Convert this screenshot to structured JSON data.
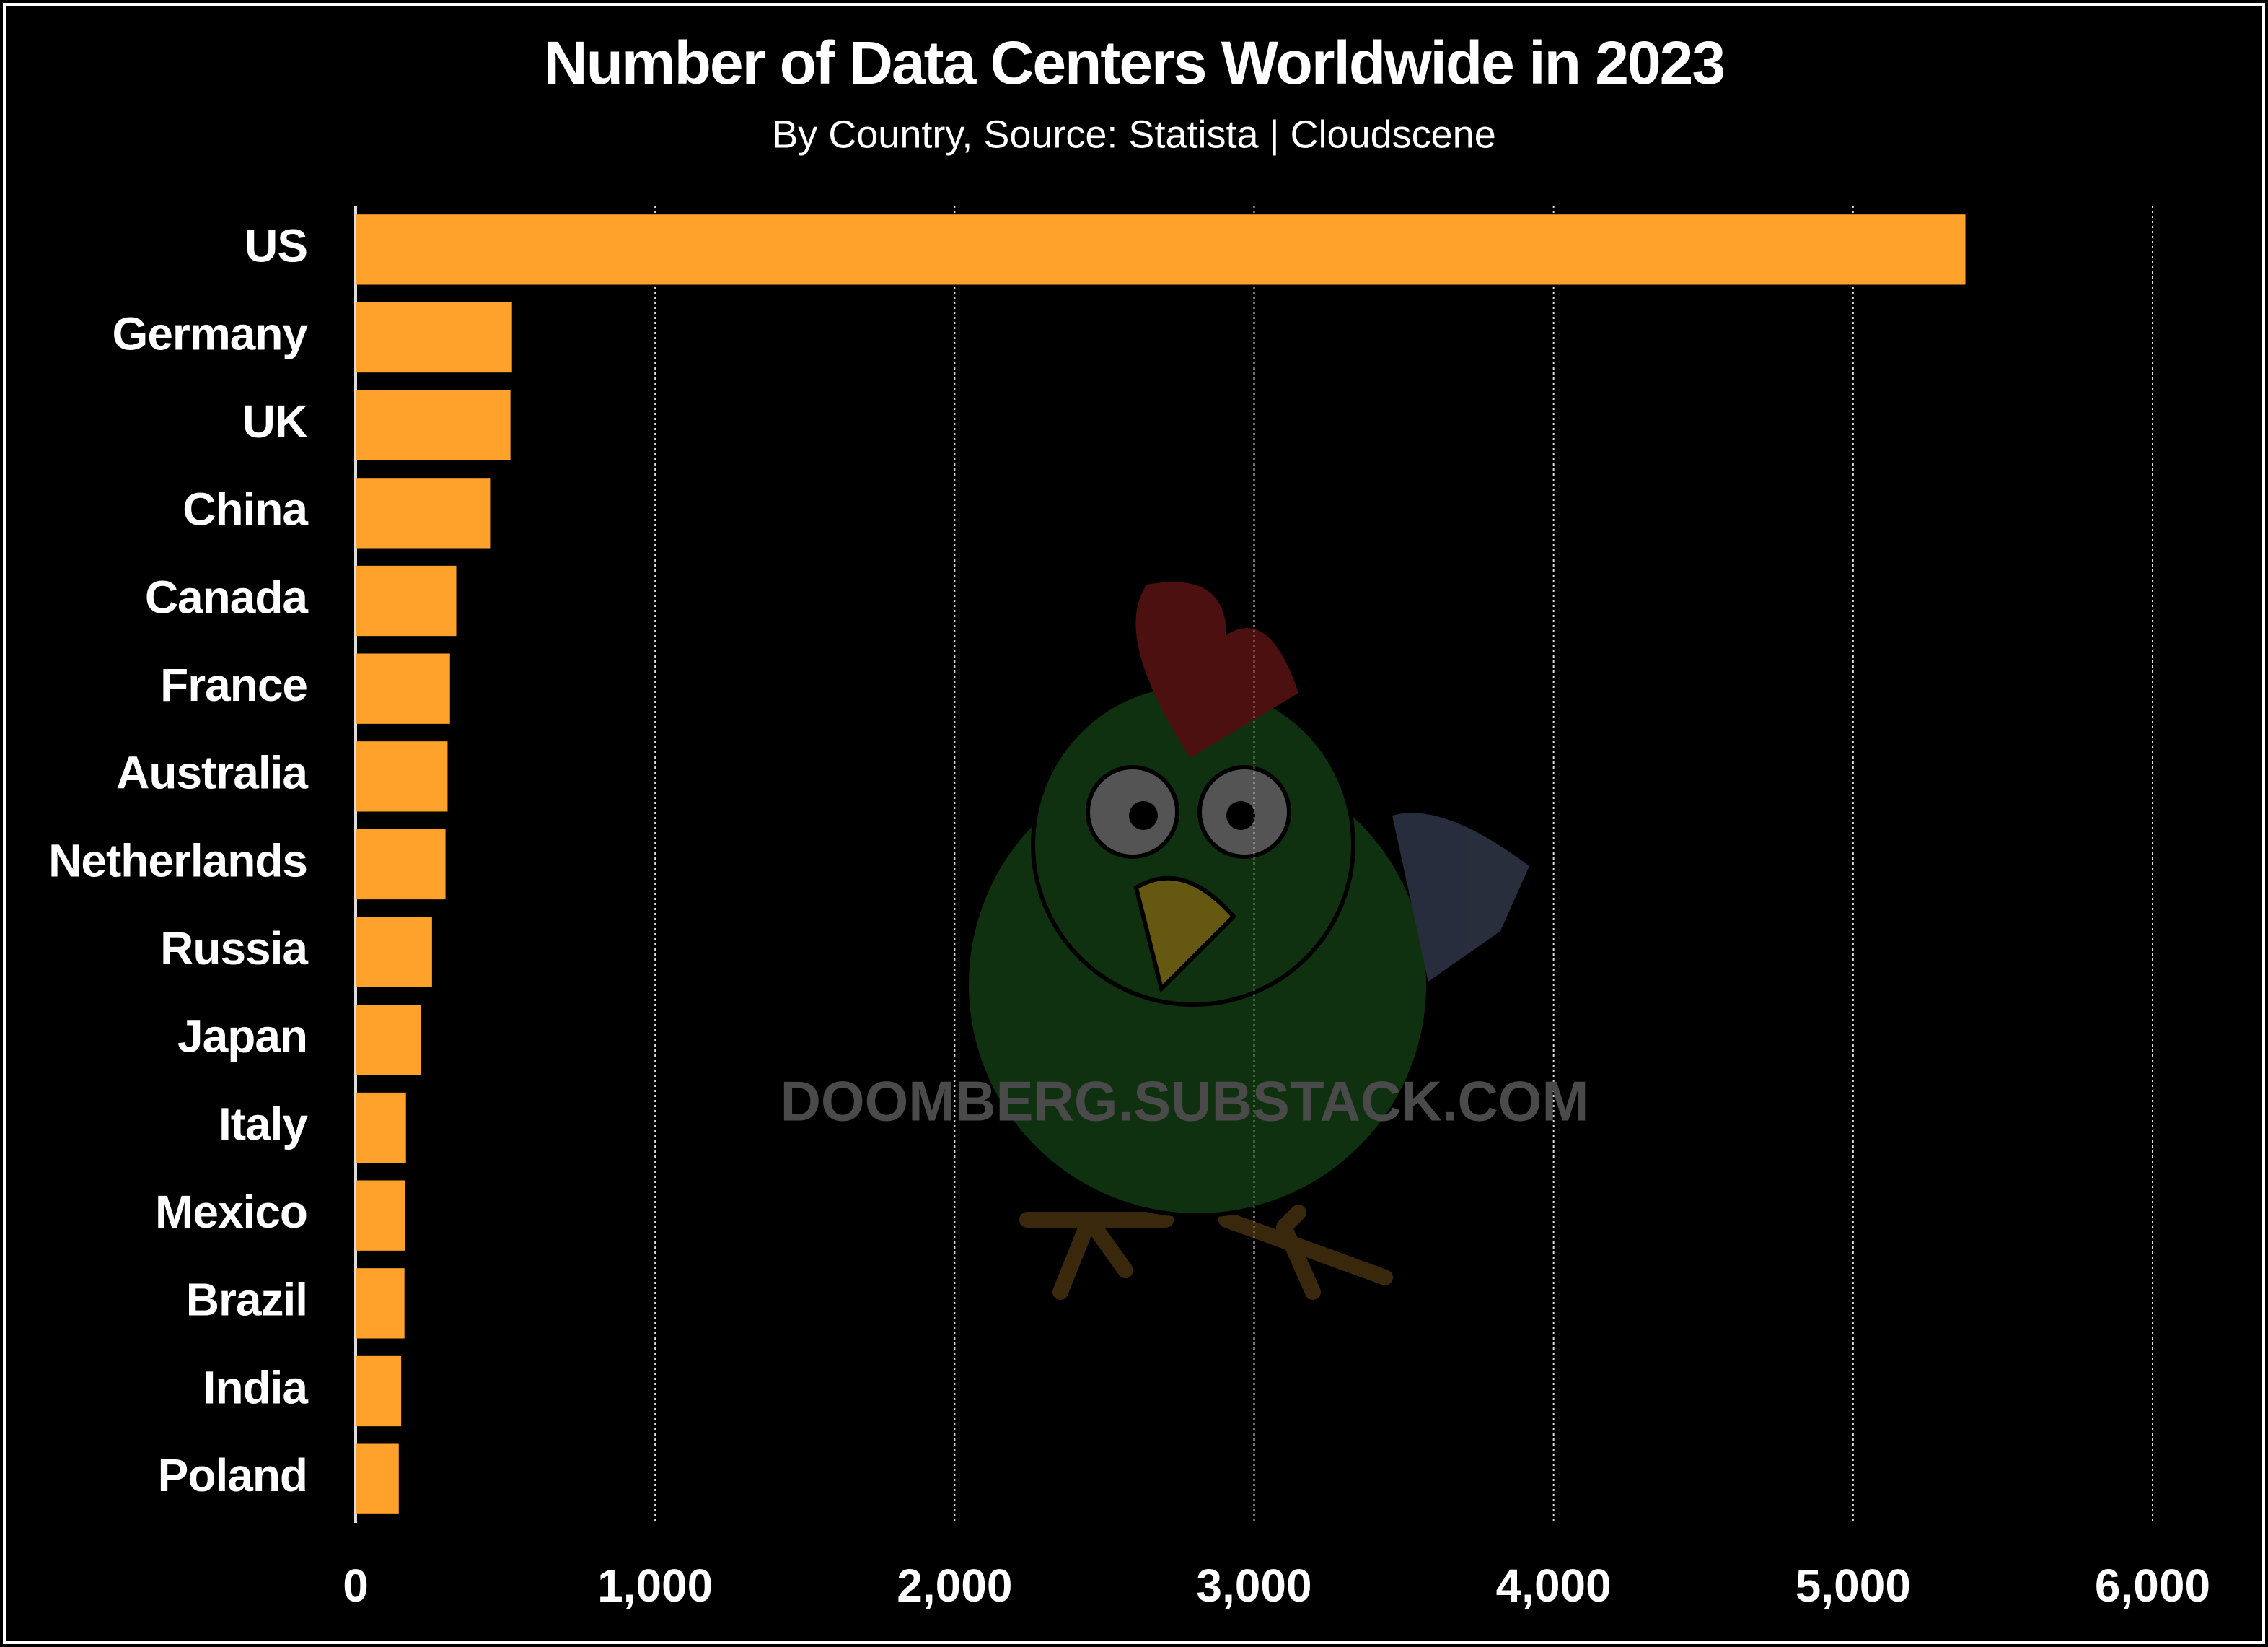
{
  "chart_data": {
    "type": "bar",
    "orientation": "horizontal",
    "title": "Number of Data Centers Worldwide in 2023",
    "subtitle": "By Country, Source: Statista | Cloudscene",
    "watermark": "DOOMBERG.SUBSTACK.COM",
    "categories": [
      "US",
      "Germany",
      "UK",
      "China",
      "Canada",
      "France",
      "Australia",
      "Netherlands",
      "Russia",
      "Japan",
      "Italy",
      "Mexico",
      "Brazil",
      "India",
      "Poland"
    ],
    "values": [
      5375,
      522,
      517,
      449,
      336,
      315,
      307,
      300,
      255,
      219,
      168,
      166,
      163,
      152,
      144
    ],
    "color": "#ffa22b",
    "xlim": [
      0,
      6000
    ],
    "xticks": [
      0,
      {
        "value": 1000,
        "label": "1,000"
      },
      {
        "value": 2000,
        "label": "2,000"
      },
      {
        "value": 3000,
        "label": "3,000"
      },
      {
        "value": 4000,
        "label": "4,000"
      },
      {
        "value": 5000,
        "label": "5,000"
      },
      {
        "value": 6000,
        "label": "6,000"
      }
    ],
    "grid": true
  }
}
